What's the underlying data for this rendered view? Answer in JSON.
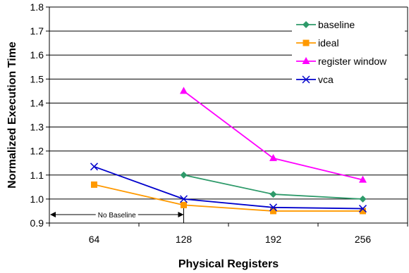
{
  "chart_data": {
    "type": "line",
    "title": "",
    "xlabel": "Physical Registers",
    "ylabel": "Normalized Execution Time",
    "categories": [
      "64",
      "128",
      "192",
      "256"
    ],
    "ylim": [
      0.9,
      1.8
    ],
    "yticks": [
      "0.9",
      "1.0",
      "1.1",
      "1.2",
      "1.3",
      "1.4",
      "1.5",
      "1.6",
      "1.7",
      "1.8"
    ],
    "grid": true,
    "legend_position": "top-right",
    "series": [
      {
        "name": "baseline",
        "color": "#2e9a6a",
        "marker": "diamond",
        "values": [
          null,
          1.1,
          1.02,
          1.0
        ]
      },
      {
        "name": "ideal",
        "color": "#ff9900",
        "marker": "square",
        "values": [
          1.06,
          0.975,
          0.95,
          0.95
        ]
      },
      {
        "name": "register window",
        "color": "#ff00ff",
        "marker": "triangle",
        "values": [
          null,
          1.45,
          1.17,
          1.08
        ]
      },
      {
        "name": "vca",
        "color": "#0000cc",
        "marker": "x",
        "values": [
          1.135,
          1.0,
          0.965,
          0.96
        ]
      }
    ],
    "annotations": [
      {
        "text": "No Baseline",
        "from": "64",
        "to": "128"
      }
    ]
  }
}
